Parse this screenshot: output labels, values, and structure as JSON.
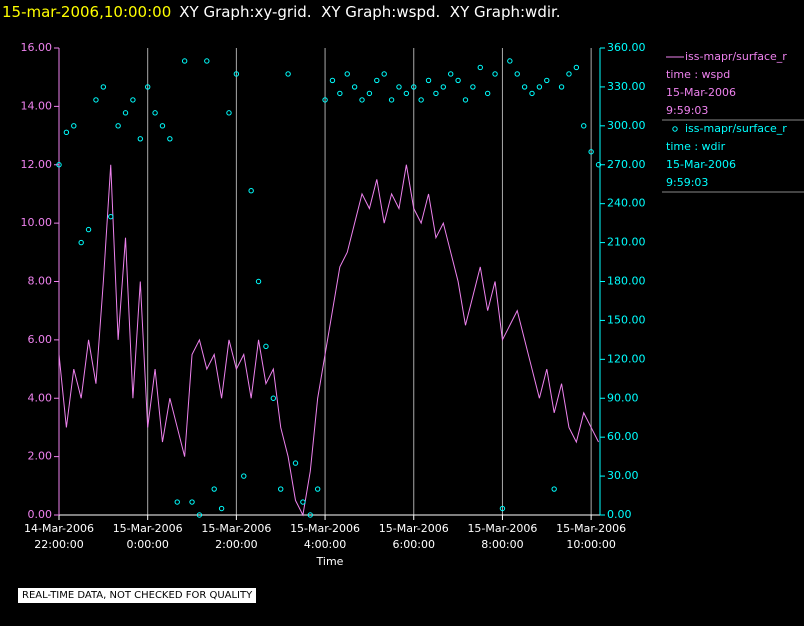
{
  "chart_data": {
    "type": "line",
    "title_time": "15-mar-2006,10:00:00",
    "title": "XY Graph:xy-grid.  XY Graph:wspd.  XY Graph:wdir.",
    "xlabel": "Time",
    "footer": "REAL-TIME DATA, NOT CHECKED FOR QUALITY",
    "grid": true,
    "xlim": [
      "2006-03-14T22:00",
      "2006-03-15T10:12"
    ],
    "xticks": [
      {
        "value": "2006-03-14T22:00",
        "label": "14-Mar-2006\n22:00:00"
      },
      {
        "value": "2006-03-15T00:00",
        "label": "15-Mar-2006\n0:00:00"
      },
      {
        "value": "2006-03-15T02:00",
        "label": "15-Mar-2006\n2:00:00"
      },
      {
        "value": "2006-03-15T04:00",
        "label": "15-Mar-2006\n4:00:00"
      },
      {
        "value": "2006-03-15T06:00",
        "label": "15-Mar-2006\n6:00:00"
      },
      {
        "value": "2006-03-15T08:00",
        "label": "15-Mar-2006\n8:00:00"
      },
      {
        "value": "2006-03-15T10:00",
        "label": "15-Mar-2006\n10:00:00"
      }
    ],
    "ylim": [
      0,
      16
    ],
    "yticks": [
      {
        "value": 0,
        "label": "0.00"
      },
      {
        "value": 2,
        "label": "2.00"
      },
      {
        "value": 4,
        "label": "4.00"
      },
      {
        "value": 6,
        "label": "6.00"
      },
      {
        "value": 8,
        "label": "8.00"
      },
      {
        "value": 10,
        "label": "10.00"
      },
      {
        "value": 12,
        "label": "12.00"
      },
      {
        "value": 14,
        "label": "14.00"
      },
      {
        "value": 16,
        "label": "16.00"
      }
    ],
    "y2lim": [
      0,
      360
    ],
    "y2ticks": [
      {
        "value": 0,
        "label": "0.00"
      },
      {
        "value": 30,
        "label": "30.00"
      },
      {
        "value": 60,
        "label": "60.00"
      },
      {
        "value": 90,
        "label": "90.00"
      },
      {
        "value": 120,
        "label": "120.00"
      },
      {
        "value": 150,
        "label": "150.00"
      },
      {
        "value": 180,
        "label": "180.00"
      },
      {
        "value": 210,
        "label": "210.00"
      },
      {
        "value": 240,
        "label": "240.00"
      },
      {
        "value": 270,
        "label": "270.00"
      },
      {
        "value": 300,
        "label": "300.00"
      },
      {
        "value": 330,
        "label": "330.00"
      },
      {
        "value": 360,
        "label": "360.00"
      }
    ],
    "x": [
      "2006-03-14T22:00",
      "2006-03-14T22:10",
      "2006-03-14T22:20",
      "2006-03-14T22:30",
      "2006-03-14T22:40",
      "2006-03-14T22:50",
      "2006-03-14T23:00",
      "2006-03-14T23:10",
      "2006-03-14T23:20",
      "2006-03-14T23:30",
      "2006-03-14T23:40",
      "2006-03-14T23:50",
      "2006-03-15T00:00",
      "2006-03-15T00:10",
      "2006-03-15T00:20",
      "2006-03-15T00:30",
      "2006-03-15T00:40",
      "2006-03-15T00:50",
      "2006-03-15T01:00",
      "2006-03-15T01:10",
      "2006-03-15T01:20",
      "2006-03-15T01:30",
      "2006-03-15T01:40",
      "2006-03-15T01:50",
      "2006-03-15T02:00",
      "2006-03-15T02:10",
      "2006-03-15T02:20",
      "2006-03-15T02:30",
      "2006-03-15T02:40",
      "2006-03-15T02:50",
      "2006-03-15T03:00",
      "2006-03-15T03:10",
      "2006-03-15T03:20",
      "2006-03-15T03:30",
      "2006-03-15T03:40",
      "2006-03-15T03:50",
      "2006-03-15T04:00",
      "2006-03-15T04:10",
      "2006-03-15T04:20",
      "2006-03-15T04:30",
      "2006-03-15T04:40",
      "2006-03-15T04:50",
      "2006-03-15T05:00",
      "2006-03-15T05:10",
      "2006-03-15T05:20",
      "2006-03-15T05:30",
      "2006-03-15T05:40",
      "2006-03-15T05:50",
      "2006-03-15T06:00",
      "2006-03-15T06:10",
      "2006-03-15T06:20",
      "2006-03-15T06:30",
      "2006-03-15T06:40",
      "2006-03-15T06:50",
      "2006-03-15T07:00",
      "2006-03-15T07:10",
      "2006-03-15T07:20",
      "2006-03-15T07:30",
      "2006-03-15T07:40",
      "2006-03-15T07:50",
      "2006-03-15T08:00",
      "2006-03-15T08:10",
      "2006-03-15T08:20",
      "2006-03-15T08:30",
      "2006-03-15T08:40",
      "2006-03-15T08:50",
      "2006-03-15T09:00",
      "2006-03-15T09:10",
      "2006-03-15T09:20",
      "2006-03-15T09:30",
      "2006-03-15T09:40",
      "2006-03-15T09:50",
      "2006-03-15T10:00",
      "2006-03-15T10:10"
    ],
    "series": [
      {
        "name": "iss-mapr/surface_r",
        "legend": [
          "time : wspd",
          "15-Mar-2006",
          "9:59:03"
        ],
        "color": "#ee82ee",
        "style": "line",
        "values": [
          5.5,
          3,
          5,
          4,
          6,
          4.5,
          8,
          12,
          6,
          9.5,
          4,
          8,
          3,
          5,
          2.5,
          4,
          3,
          2,
          5.5,
          6,
          5,
          5.5,
          4,
          6,
          5,
          5.5,
          4,
          6,
          4.5,
          5,
          3,
          2,
          0.5,
          0,
          1.5,
          4,
          5.5,
          7,
          8.5,
          9,
          10,
          11,
          10.5,
          11.5,
          10,
          11,
          10.5,
          12,
          10.5,
          10,
          11,
          9.5,
          10,
          9,
          8,
          6.5,
          7.5,
          8.5,
          7,
          8,
          6,
          6.5,
          7,
          6,
          5,
          4,
          5,
          3.5,
          4.5,
          3,
          2.5,
          3.5,
          3,
          2.5
        ]
      },
      {
        "name": "iss-mapr/surface_r",
        "legend": [
          "time : wdir",
          "15-Mar-2006",
          "9:59:03"
        ],
        "color": "#00ffff",
        "style": "points",
        "axis": "y2",
        "values": [
          270,
          295,
          300,
          210,
          220,
          320,
          330,
          230,
          300,
          310,
          320,
          290,
          330,
          310,
          300,
          290,
          10,
          350,
          10,
          0,
          350,
          20,
          5,
          310,
          340,
          30,
          250,
          180,
          130,
          90,
          20,
          340,
          40,
          10,
          0,
          20,
          320,
          335,
          325,
          340,
          330,
          320,
          325,
          335,
          340,
          320,
          330,
          325,
          330,
          320,
          335,
          325,
          330,
          340,
          335,
          320,
          330,
          345,
          325,
          340,
          5,
          350,
          340,
          330,
          325,
          330,
          335,
          20,
          330,
          340,
          345,
          300,
          280,
          270
        ]
      }
    ]
  }
}
